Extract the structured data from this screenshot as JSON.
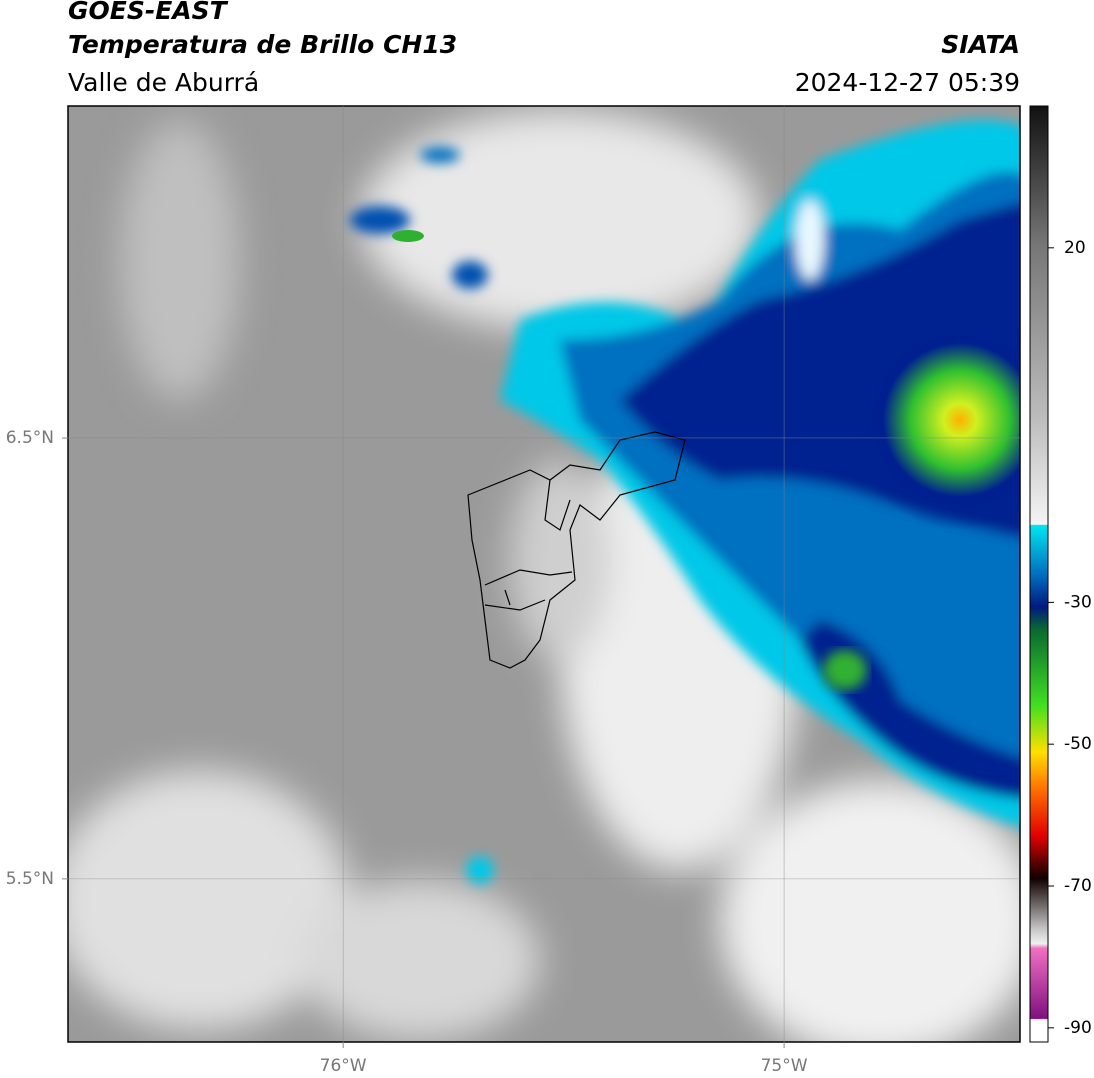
{
  "header": {
    "title1": "GOES-EAST",
    "title2": "Temperatura de Brillo CH13",
    "subtitle": "Valle de Aburrá",
    "source": "SIATA",
    "datetime": "2024-12-27 05:39"
  },
  "map": {
    "xlim": [
      -76.624,
      -74.465
    ],
    "ylim": [
      5.13,
      7.253
    ],
    "xticks": [
      {
        "value": -76,
        "label": "76°W"
      },
      {
        "value": -75,
        "label": "75°W"
      }
    ],
    "yticks": [
      {
        "value": 6.5,
        "label": "6.5°N"
      },
      {
        "value": 5.5,
        "label": "5.5°N"
      }
    ]
  },
  "colorbar": {
    "clim": [
      -92,
      40
    ],
    "ticks": [
      20,
      -30,
      -50,
      -70,
      -90
    ]
  }
}
